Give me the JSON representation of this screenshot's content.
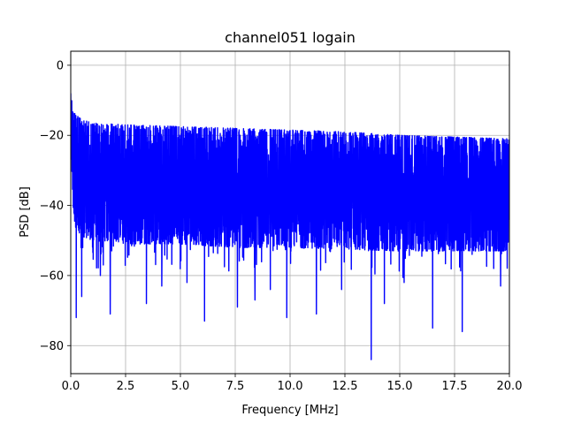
{
  "chart_data": {
    "type": "line",
    "title": "channel051 logain",
    "xlabel": "Frequency [MHz]",
    "ylabel": "PSD [dB]",
    "xlim": [
      0,
      20
    ],
    "ylim": [
      -88,
      4
    ],
    "xticks": [
      0,
      2.5,
      5,
      7.5,
      10,
      12.5,
      15,
      17.5,
      20
    ],
    "xtick_labels": [
      "0.0",
      "2.5",
      "5.0",
      "7.5",
      "10.0",
      "12.5",
      "15.0",
      "17.5",
      "20.0"
    ],
    "yticks": [
      0,
      -20,
      -40,
      -60,
      -80
    ],
    "ytick_labels": [
      "0",
      "−20",
      "−40",
      "−60",
      "−80"
    ],
    "grid": true,
    "line_color": "#0000ff",
    "series": [
      {
        "envelope": {
          "x": [
            0,
            0.05,
            0.1,
            0.2,
            0.5,
            1,
            2.5,
            5,
            7.5,
            10,
            12.5,
            15,
            17.5,
            20
          ],
          "upper": [
            -8,
            -10,
            -12,
            -14,
            -15.5,
            -16.5,
            -17,
            -17.5,
            -18,
            -18.5,
            -19,
            -20,
            -20.5,
            -21
          ],
          "center": [
            -12,
            -18,
            -25,
            -30,
            -33,
            -35,
            -36,
            -36.5,
            -37,
            -37,
            -37.5,
            -38,
            -38,
            -38
          ],
          "lower": [
            -20,
            -30,
            -40,
            -46,
            -49,
            -50,
            -51,
            -51,
            -52,
            -52,
            -52.5,
            -53,
            -53,
            -53
          ]
        },
        "spikes": [
          {
            "x": 0.25,
            "y": -72
          },
          {
            "x": 0.5,
            "y": -66
          },
          {
            "x": 1.35,
            "y": -60
          },
          {
            "x": 1.8,
            "y": -71
          },
          {
            "x": 3.45,
            "y": -68
          },
          {
            "x": 4.15,
            "y": -63
          },
          {
            "x": 5.3,
            "y": -62
          },
          {
            "x": 6.1,
            "y": -73
          },
          {
            "x": 7.6,
            "y": -69
          },
          {
            "x": 8.4,
            "y": -67
          },
          {
            "x": 9.1,
            "y": -64
          },
          {
            "x": 9.85,
            "y": -72
          },
          {
            "x": 11.2,
            "y": -71
          },
          {
            "x": 12.35,
            "y": -64
          },
          {
            "x": 13.7,
            "y": -84
          },
          {
            "x": 14.3,
            "y": -68
          },
          {
            "x": 15.2,
            "y": -62
          },
          {
            "x": 16.5,
            "y": -75
          },
          {
            "x": 17.85,
            "y": -76
          },
          {
            "x": 19.6,
            "y": -63
          }
        ]
      }
    ]
  }
}
